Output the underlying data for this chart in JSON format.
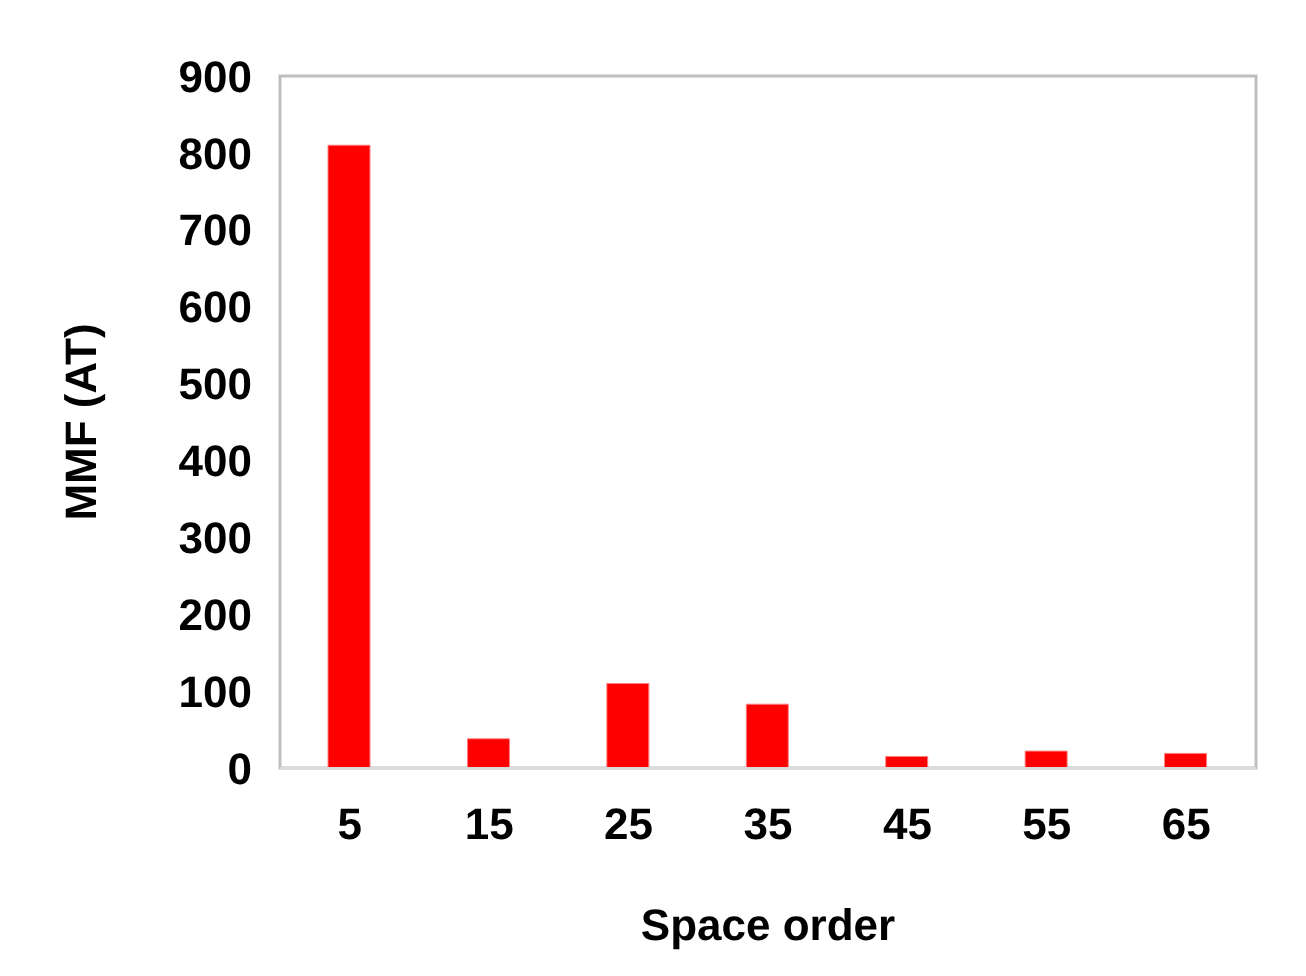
{
  "chart_data": {
    "type": "bar",
    "xlabel": "Space order",
    "ylabel": "MMF (AT)",
    "categories": [
      "5",
      "15",
      "25",
      "35",
      "45",
      "55",
      "65"
    ],
    "values": [
      810,
      38,
      110,
      83,
      15,
      22,
      19
    ],
    "color": "#ff0000",
    "ylim": [
      0,
      900
    ],
    "yticks": [
      0,
      100,
      200,
      300,
      400,
      500,
      600,
      700,
      800,
      900
    ],
    "grid": false,
    "legend": false
  }
}
